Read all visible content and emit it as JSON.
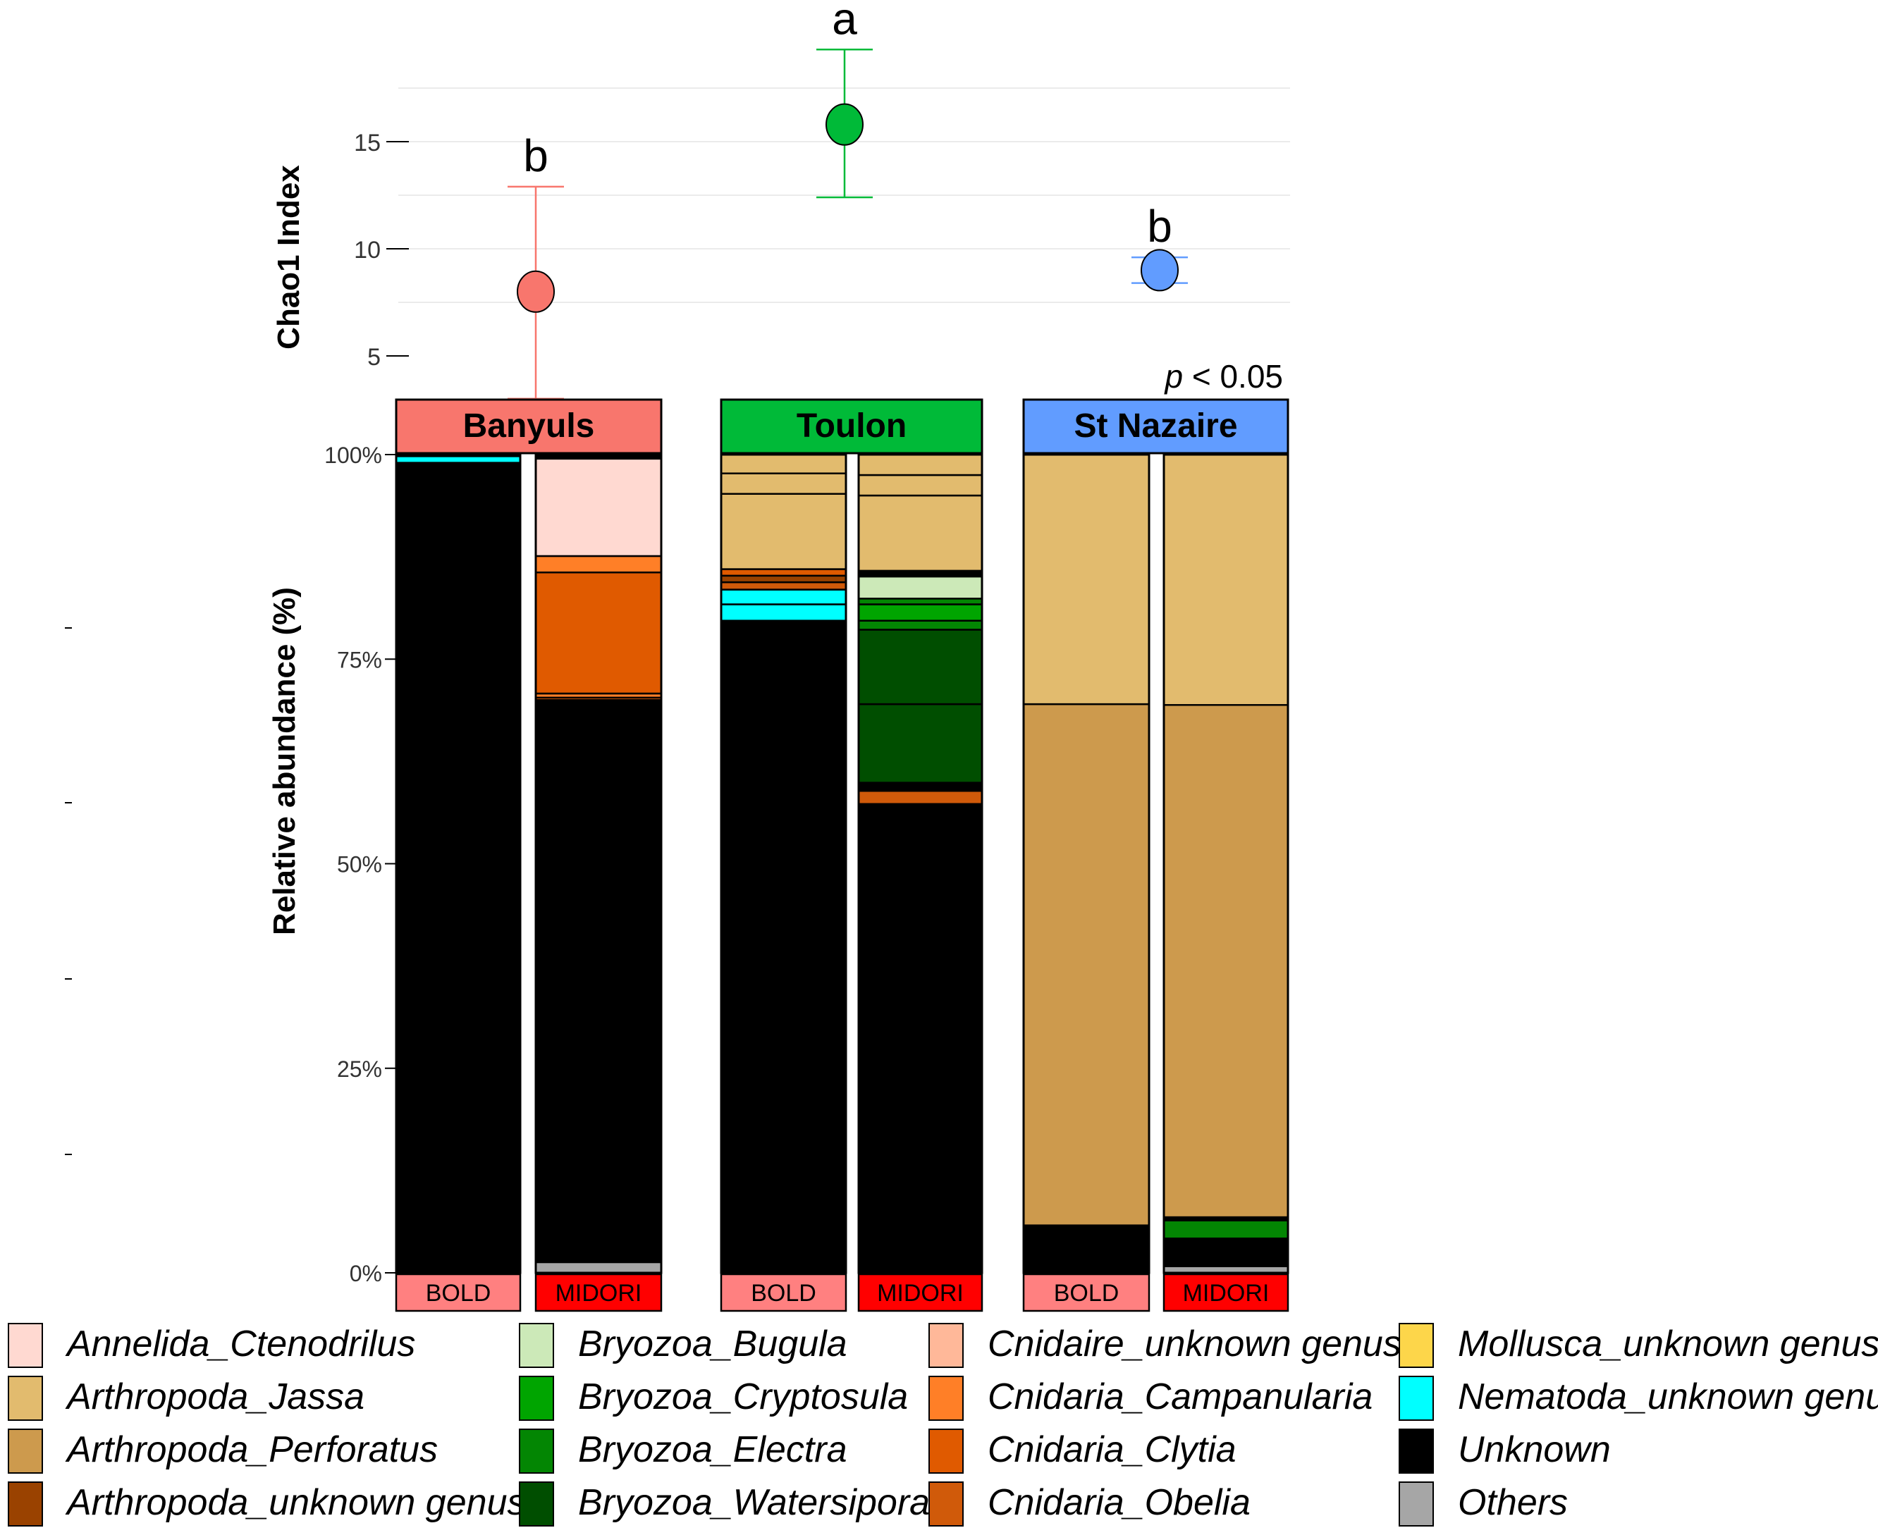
{
  "chart_data": [
    {
      "type": "scatter",
      "ylabel": "Chao1 Index",
      "yticks": [
        5,
        10,
        15
      ],
      "ylim": [
        4.2,
        18.5
      ],
      "grid": true,
      "annotation": "p < 0.05",
      "annotation_italic": "p",
      "annotation_rest": " < 0.05",
      "points": [
        {
          "site": "Banyuls",
          "mean": 8.0,
          "lower": 3.0,
          "upper": 12.9,
          "letter": "b",
          "color": "#f8766d"
        },
        {
          "site": "Toulon",
          "mean": 15.8,
          "lower": 12.4,
          "upper": 19.3,
          "letter": "a",
          "color": "#00ba38"
        },
        {
          "site": "St Nazaire",
          "mean": 9.0,
          "lower": 8.4,
          "upper": 9.6,
          "letter": "b",
          "color": "#619cff"
        }
      ]
    },
    {
      "type": "bar",
      "stacked": true,
      "ylabel": "Relative abundance (%)",
      "yticks": [
        "0%",
        "25%",
        "50%",
        "75%",
        "100%"
      ],
      "ylim": [
        0,
        100
      ],
      "facets": [
        {
          "name": "Banyuls",
          "color": "#f8766d",
          "bars": [
            {
              "label": "BOLD",
              "label_color": "#ff8080",
              "segments": [
                {
                  "taxon": "Unknown",
                  "value": 99.0
                },
                {
                  "taxon": "Nematoda_unknown genus",
                  "value": 0.8
                },
                {
                  "taxon": "Annelida_Ctenodrilus",
                  "value": 0.2
                }
              ]
            },
            {
              "label": "MIDORI",
              "label_color": "#ff0000",
              "segments": [
                {
                  "taxon": "Others",
                  "value": 1.3
                },
                {
                  "taxon": "Unknown",
                  "value": 68.7
                },
                {
                  "taxon": "Cnidaria_Obelia",
                  "value": 0.3
                },
                {
                  "taxon": "Cnidaria_Campanularia",
                  "value": 0.5
                },
                {
                  "taxon": "Cnidaria_Clytia",
                  "value": 14.8
                },
                {
                  "taxon": "Cnidaria_Campanularia",
                  "value": 2.0
                },
                {
                  "taxon": "Annelida_Ctenodrilus",
                  "value": 11.9
                },
                {
                  "taxon": "Unknown",
                  "value": 0.5
                }
              ]
            }
          ]
        },
        {
          "name": "Toulon",
          "color": "#00ba38",
          "bars": [
            {
              "label": "BOLD",
              "label_color": "#ff8080",
              "segments": [
                {
                  "taxon": "Unknown",
                  "value": 79.7
                },
                {
                  "taxon": "Nematoda_unknown genus",
                  "value": 2.0
                },
                {
                  "taxon": "Nematoda_unknown genus",
                  "value": 1.8
                },
                {
                  "taxon": "Cnidaria_Obelia",
                  "value": 0.9
                },
                {
                  "taxon": "Arthropoda_unknown genus",
                  "value": 0.8
                },
                {
                  "taxon": "Cnidaria_Clytia",
                  "value": 0.8
                },
                {
                  "taxon": "Arthropoda_Jassa",
                  "value": 9.2
                },
                {
                  "taxon": "Arthropoda_Jassa",
                  "value": 2.5
                },
                {
                  "taxon": "Arthropoda_Jassa",
                  "value": 2.3
                }
              ]
            },
            {
              "label": "MIDORI",
              "label_color": "#ff0000",
              "segments": [
                {
                  "taxon": "Unknown",
                  "value": 57.3
                },
                {
                  "taxon": "Cnidaria_Obelia",
                  "value": 1.6
                },
                {
                  "taxon": "Unknown",
                  "value": 1.0
                },
                {
                  "taxon": "Bryozoa_Watersipora",
                  "value": 9.6
                },
                {
                  "taxon": "Bryozoa_Watersipora",
                  "value": 9.1
                },
                {
                  "taxon": "Bryozoa_Electra",
                  "value": 1.1
                },
                {
                  "taxon": "Bryozoa_Cryptosula",
                  "value": 2.0
                },
                {
                  "taxon": "Bryozoa_Electra",
                  "value": 0.7
                },
                {
                  "taxon": "Bryozoa_Bugula",
                  "value": 2.7
                },
                {
                  "taxon": "Unknown",
                  "value": 0.7
                },
                {
                  "taxon": "Arthropoda_Jassa",
                  "value": 9.2
                },
                {
                  "taxon": "Arthropoda_Jassa",
                  "value": 2.5
                },
                {
                  "taxon": "Arthropoda_Jassa",
                  "value": 2.5
                }
              ]
            }
          ]
        },
        {
          "name": "St Nazaire",
          "color": "#619cff",
          "bars": [
            {
              "label": "BOLD",
              "label_color": "#ff8080",
              "segments": [
                {
                  "taxon": "Unknown",
                  "value": 5.8
                },
                {
                  "taxon": "Arthropoda_Perforatus",
                  "value": 63.7
                },
                {
                  "taxon": "Arthropoda_Jassa",
                  "value": 30.5
                }
              ]
            },
            {
              "label": "MIDORI",
              "label_color": "#ff0000",
              "segments": [
                {
                  "taxon": "Others",
                  "value": 0.8
                },
                {
                  "taxon": "Unknown",
                  "value": 3.4
                },
                {
                  "taxon": "Bryozoa_Electra",
                  "value": 2.2
                },
                {
                  "taxon": "Unknown",
                  "value": 0.4
                },
                {
                  "taxon": "Arthropoda_Perforatus",
                  "value": 62.6
                },
                {
                  "taxon": "Arthropoda_Jassa",
                  "value": 30.6
                }
              ]
            }
          ]
        }
      ],
      "legend": [
        {
          "label": "Annelida_Ctenodrilus",
          "color": "#ffd9d1"
        },
        {
          "label": "Arthropoda_Jassa",
          "color": "#e2bb6e"
        },
        {
          "label": "Arthropoda_Perforatus",
          "color": "#cd9a4d"
        },
        {
          "label": "Arthropoda_unknown genus",
          "color": "#9a4200"
        },
        {
          "label": "Bryozoa_Bugula",
          "color": "#cce9b8"
        },
        {
          "label": "Bryozoa_Cryptosula",
          "color": "#00a500"
        },
        {
          "label": "Bryozoa_Electra",
          "color": "#038603"
        },
        {
          "label": "Bryozoa_Watersipora",
          "color": "#004e00"
        },
        {
          "label": "Cnidaire_unknown genus",
          "color": "#ffb899"
        },
        {
          "label": "Cnidaria_Campanularia",
          "color": "#ff7f27"
        },
        {
          "label": "Cnidaria_Clytia",
          "color": "#e05a00"
        },
        {
          "label": "Cnidaria_Obelia",
          "color": "#d05a0a"
        },
        {
          "label": "Mollusca_unknown genus",
          "color": "#fdd64a"
        },
        {
          "label": "Nematoda_unknown genus",
          "color": "#00ffff"
        },
        {
          "label": "Unknown",
          "color": "#000000"
        },
        {
          "label": "Others",
          "color": "#a6a6a6"
        }
      ]
    }
  ]
}
